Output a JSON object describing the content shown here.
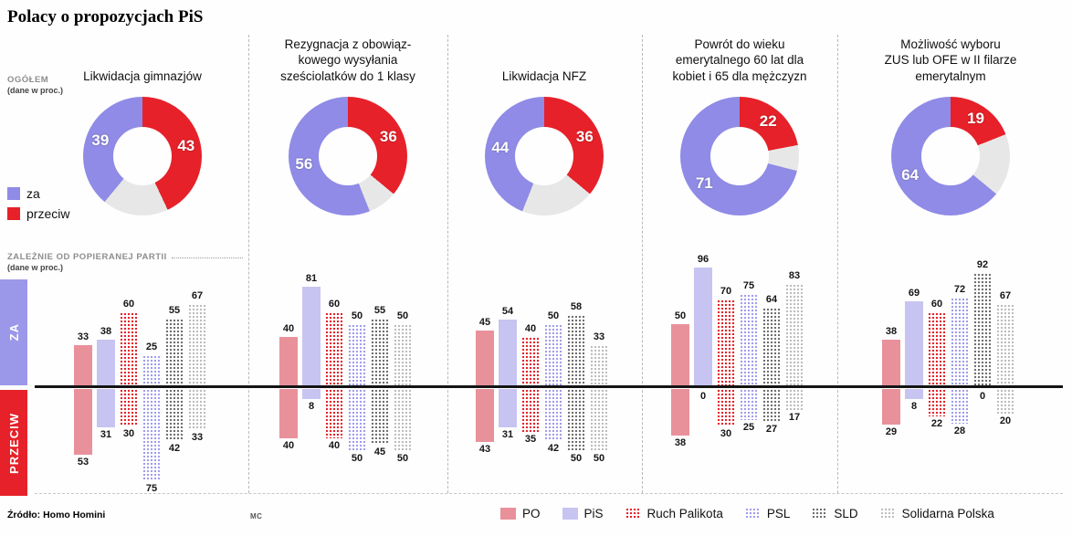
{
  "title": "Polacy o propozycjach PiS",
  "left_panel": {
    "ogolem_label": "OGÓŁEM",
    "ogolem_sub": "(dane w proc.)",
    "legend_za": "za",
    "legend_przeciw": "przeciw",
    "party_section_label": "ZALEŻNIE OD POPIERANEJ PARTII",
    "party_section_sub": "(dane w proc.)",
    "za_axis_label": "ZA",
    "przeciw_axis_label": "PRZECIW"
  },
  "footer": {
    "source": "Źródło: Homo Homini",
    "credit": "MC"
  },
  "colors": {
    "za": "#8f8be6",
    "przeciw": "#e62129",
    "rest": "#e7e7e7",
    "za_box": "#9b98ea",
    "przeciw_box": "#e62129",
    "axis": "#141414"
  },
  "parties": [
    {
      "name": "PO",
      "fill": "solid",
      "color": "#e8919b"
    },
    {
      "name": "PiS",
      "fill": "solid",
      "color": "#c7c4f1"
    },
    {
      "name": "Ruch Palikota",
      "fill": "dots",
      "color": "#e62129"
    },
    {
      "name": "PSL",
      "fill": "dots",
      "color": "#a19ded"
    },
    {
      "name": "SLD",
      "fill": "dots",
      "color": "#6f6f6f"
    },
    {
      "name": "Solidarna Polska",
      "fill": "dots",
      "color": "#bdbdbd"
    }
  ],
  "chart_data": [
    {
      "type": "donut+bars",
      "title": "Likwidacja gimnazjów",
      "donut": {
        "za": 39,
        "przeciw": 43
      },
      "bars_za": [
        33,
        38,
        60,
        25,
        55,
        67
      ],
      "bars_przeciw": [
        53,
        31,
        30,
        75,
        42,
        33
      ]
    },
    {
      "type": "donut+bars",
      "title": "Rezygnacja z obowiąz-\nkowego wysyłania\nsześciolatków do 1 klasy",
      "donut": {
        "za": 56,
        "przeciw": 36
      },
      "bars_za": [
        40,
        81,
        60,
        50,
        55,
        50
      ],
      "bars_przeciw": [
        40,
        8,
        40,
        50,
        45,
        50
      ]
    },
    {
      "type": "donut+bars",
      "title": "Likwidacja NFZ",
      "donut": {
        "za": 44,
        "przeciw": 36
      },
      "bars_za": [
        45,
        54,
        40,
        50,
        58,
        33
      ],
      "bars_przeciw": [
        43,
        31,
        35,
        42,
        50,
        50
      ]
    },
    {
      "type": "donut+bars",
      "title": "Powrót do wieku\nemerytalnego 60 lat dla\nkobiet i 65 dla mężczyzn",
      "donut": {
        "za": 71,
        "przeciw": 22
      },
      "bars_za": [
        50,
        96,
        70,
        75,
        64,
        83
      ],
      "bars_przeciw": [
        38,
        0,
        30,
        25,
        27,
        17
      ]
    },
    {
      "type": "donut+bars",
      "title": "Możliwość wyboru\nZUS lub OFE w II filarze\nemerytalnym",
      "donut": {
        "za": 64,
        "przeciw": 19
      },
      "bars_za": [
        38,
        69,
        60,
        72,
        92,
        67
      ],
      "bars_przeciw": [
        29,
        8,
        22,
        28,
        0,
        20
      ]
    }
  ],
  "layout_hints": {
    "bars_unit": "percent",
    "bars_axis": "diverging ZA up / PRZECIW down",
    "legend_position": "bottom"
  }
}
